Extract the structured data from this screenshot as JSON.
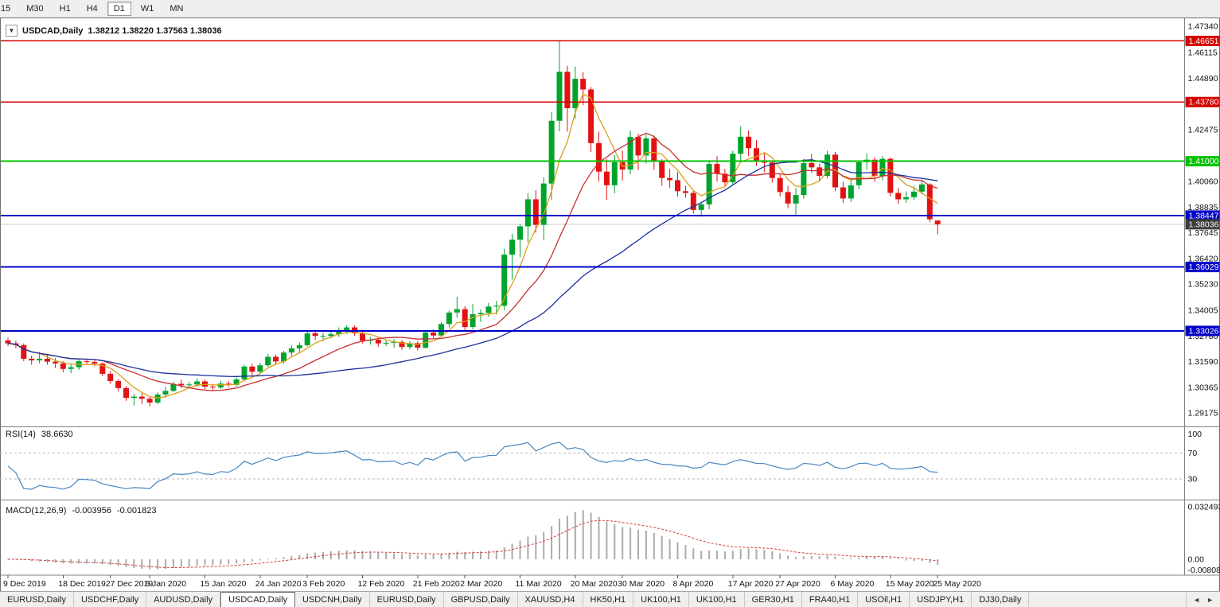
{
  "toolbar": {
    "timeframes": [
      "15",
      "M30",
      "H1",
      "H4",
      "D1",
      "W1",
      "MN"
    ],
    "selected": "D1"
  },
  "chart_data": {
    "type": "candlestick",
    "title": "USDCAD,Daily",
    "ohlc_text": "1.38212 1.38220 1.37563 1.38036",
    "ohlc": {
      "open": 1.38212,
      "high": 1.3822,
      "low": 1.37563,
      "close": 1.38036
    },
    "price_axis": {
      "range": {
        "min": 1.28614,
        "max": 1.47564
      },
      "ticks": [
        "1.47340",
        "1.46115",
        "1.44890",
        "1.42475",
        "1.40060",
        "1.38835",
        "1.37645",
        "1.36420",
        "1.35230",
        "1.34005",
        "1.32780",
        "1.31590",
        "1.30365",
        "1.29175"
      ]
    },
    "levels": [
      {
        "value": 1.46651,
        "label": "1.46651",
        "color": "#d40000",
        "width": 1.6
      },
      {
        "value": 1.4378,
        "label": "1.43780",
        "color": "#d40000",
        "width": 1.6
      },
      {
        "value": 1.41,
        "label": "1.41000",
        "color": "#00c400",
        "width": 2.2
      },
      {
        "value": 1.38447,
        "label": "1.38447",
        "color": "#0000c8",
        "width": 2
      },
      {
        "value": 1.36029,
        "label": "1.36029",
        "color": "#0000c8",
        "width": 2
      },
      {
        "value": 1.33026,
        "label": "1.33026",
        "color": "#0000c8",
        "width": 2
      }
    ],
    "current_price": {
      "value": 1.38036,
      "label": "1.38036",
      "line_color": "#c9c9c9",
      "label_bg": "#3c3c3c"
    },
    "candle_colors": {
      "up": "#00a42c",
      "down": "#e31212"
    },
    "moving_averages": [
      {
        "period": 5,
        "color": "#dba018"
      },
      {
        "period": 13,
        "color": "#c62f2f"
      },
      {
        "period": 34,
        "color": "#1b2f9e"
      }
    ],
    "candles": [
      [
        1.3258,
        1.327,
        1.3232,
        1.3244
      ],
      [
        1.3244,
        1.3256,
        1.3222,
        1.3236
      ],
      [
        1.3236,
        1.3244,
        1.316,
        1.3172
      ],
      [
        1.3172,
        1.3186,
        1.3144,
        1.3164
      ],
      [
        1.3164,
        1.3204,
        1.315,
        1.3172
      ],
      [
        1.3172,
        1.3188,
        1.3144,
        1.3158
      ],
      [
        1.3158,
        1.3175,
        1.3128,
        1.315
      ],
      [
        1.315,
        1.316,
        1.3108,
        1.3124
      ],
      [
        1.3124,
        1.315,
        1.3104,
        1.3132
      ],
      [
        1.3132,
        1.317,
        1.312,
        1.316
      ],
      [
        1.316,
        1.3172,
        1.3144,
        1.3157
      ],
      [
        1.3157,
        1.3164,
        1.3138,
        1.3149
      ],
      [
        1.3149,
        1.3154,
        1.309,
        1.3101
      ],
      [
        1.3101,
        1.3114,
        1.3054,
        1.3067
      ],
      [
        1.3067,
        1.3075,
        1.3018,
        1.3034
      ],
      [
        1.3034,
        1.3044,
        1.2974,
        1.2988
      ],
      [
        1.2988,
        1.3006,
        1.2952,
        1.2994
      ],
      [
        1.2994,
        1.301,
        1.2958,
        1.2984
      ],
      [
        1.2984,
        1.2995,
        1.2948,
        1.2966
      ],
      [
        1.2966,
        1.3014,
        1.2958,
        1.3004
      ],
      [
        1.3004,
        1.304,
        1.2988,
        1.3021
      ],
      [
        1.3021,
        1.3064,
        1.3014,
        1.3054
      ],
      [
        1.3054,
        1.3074,
        1.3034,
        1.3047
      ],
      [
        1.3047,
        1.3064,
        1.3034,
        1.3051
      ],
      [
        1.3051,
        1.3079,
        1.3039,
        1.3065
      ],
      [
        1.3065,
        1.3074,
        1.3028,
        1.3041
      ],
      [
        1.3041,
        1.3054,
        1.3024,
        1.3037
      ],
      [
        1.3037,
        1.3069,
        1.3029,
        1.3055
      ],
      [
        1.3055,
        1.3067,
        1.3039,
        1.3049
      ],
      [
        1.3049,
        1.3084,
        1.3041,
        1.3075
      ],
      [
        1.3075,
        1.3144,
        1.3069,
        1.3135
      ],
      [
        1.3135,
        1.3149,
        1.3094,
        1.3111
      ],
      [
        1.3111,
        1.3154,
        1.3099,
        1.3141
      ],
      [
        1.3141,
        1.3194,
        1.3134,
        1.3181
      ],
      [
        1.3181,
        1.3191,
        1.3144,
        1.3159
      ],
      [
        1.3159,
        1.3209,
        1.3149,
        1.3201
      ],
      [
        1.3201,
        1.3234,
        1.3184,
        1.3221
      ],
      [
        1.3221,
        1.3249,
        1.3199,
        1.3235
      ],
      [
        1.3235,
        1.3299,
        1.3229,
        1.3291
      ],
      [
        1.3291,
        1.3304,
        1.3261,
        1.3279
      ],
      [
        1.3279,
        1.3294,
        1.3254,
        1.3279
      ],
      [
        1.3279,
        1.3299,
        1.3267,
        1.3287
      ],
      [
        1.3287,
        1.3319,
        1.3274,
        1.3304
      ],
      [
        1.3304,
        1.3329,
        1.3289,
        1.3319
      ],
      [
        1.3319,
        1.3329,
        1.3279,
        1.3291
      ],
      [
        1.3291,
        1.3299,
        1.3244,
        1.3257
      ],
      [
        1.3257,
        1.3274,
        1.3239,
        1.3261
      ],
      [
        1.3261,
        1.3269,
        1.3229,
        1.3244
      ],
      [
        1.3244,
        1.3257,
        1.3231,
        1.3247
      ],
      [
        1.3247,
        1.3264,
        1.3224,
        1.3251
      ],
      [
        1.3251,
        1.3259,
        1.3214,
        1.3227
      ],
      [
        1.3227,
        1.3254,
        1.3217,
        1.3245
      ],
      [
        1.3245,
        1.3254,
        1.3211,
        1.3224
      ],
      [
        1.3224,
        1.3304,
        1.3219,
        1.3295
      ],
      [
        1.3295,
        1.3309,
        1.3264,
        1.3281
      ],
      [
        1.3281,
        1.3344,
        1.3274,
        1.3335
      ],
      [
        1.3335,
        1.3399,
        1.3319,
        1.3389
      ],
      [
        1.3389,
        1.3464,
        1.3364,
        1.3405
      ],
      [
        1.3405,
        1.3419,
        1.3304,
        1.3321
      ],
      [
        1.3321,
        1.3429,
        1.3309,
        1.3381
      ],
      [
        1.3381,
        1.3404,
        1.3344,
        1.3387
      ],
      [
        1.3387,
        1.3434,
        1.3369,
        1.3417
      ],
      [
        1.3417,
        1.3444,
        1.3379,
        1.3421
      ],
      [
        1.3421,
        1.3689,
        1.3399,
        1.3661
      ],
      [
        1.3661,
        1.3759,
        1.3544,
        1.3731
      ],
      [
        1.3731,
        1.3804,
        1.3649,
        1.3794
      ],
      [
        1.3794,
        1.3949,
        1.3719,
        1.3921
      ],
      [
        1.3921,
        1.3964,
        1.3764,
        1.3801
      ],
      [
        1.3801,
        1.4024,
        1.3729,
        1.3995
      ],
      [
        1.3995,
        1.433,
        1.3919,
        1.429
      ],
      [
        1.429,
        1.4668,
        1.424,
        1.452
      ],
      [
        1.452,
        1.4548,
        1.4239,
        1.4349
      ],
      [
        1.4349,
        1.4544,
        1.4299,
        1.4487
      ],
      [
        1.4487,
        1.4519,
        1.4364,
        1.4437
      ],
      [
        1.4437,
        1.4449,
        1.4144,
        1.4185
      ],
      [
        1.4185,
        1.4239,
        1.4004,
        1.4051
      ],
      [
        1.4051,
        1.4109,
        1.3919,
        1.3987
      ],
      [
        1.3987,
        1.4129,
        1.3949,
        1.4095
      ],
      [
        1.4095,
        1.4149,
        1.4009,
        1.4061
      ],
      [
        1.4061,
        1.4244,
        1.4039,
        1.4214
      ],
      [
        1.4214,
        1.4229,
        1.4059,
        1.4127
      ],
      [
        1.4127,
        1.4227,
        1.4089,
        1.4207
      ],
      [
        1.4207,
        1.4214,
        1.4059,
        1.4097
      ],
      [
        1.4097,
        1.4109,
        1.3984,
        1.4021
      ],
      [
        1.4021,
        1.4064,
        1.3974,
        1.4011
      ],
      [
        1.4011,
        1.4049,
        1.3934,
        1.3959
      ],
      [
        1.3959,
        1.3984,
        1.3929,
        1.3951
      ],
      [
        1.3951,
        1.3964,
        1.3854,
        1.3871
      ],
      [
        1.3871,
        1.3909,
        1.3839,
        1.3897
      ],
      [
        1.3897,
        1.4104,
        1.3874,
        1.4087
      ],
      [
        1.4087,
        1.4124,
        1.4004,
        1.4041
      ],
      [
        1.4041,
        1.4064,
        1.3984,
        1.4001
      ],
      [
        1.4001,
        1.4149,
        1.3989,
        1.4135
      ],
      [
        1.4135,
        1.4264,
        1.4104,
        1.4215
      ],
      [
        1.4215,
        1.4244,
        1.4124,
        1.4161
      ],
      [
        1.4161,
        1.4199,
        1.4079,
        1.4097
      ],
      [
        1.4097,
        1.4139,
        1.4049,
        1.4094
      ],
      [
        1.4094,
        1.4104,
        1.3999,
        1.4021
      ],
      [
        1.4021,
        1.4039,
        1.3934,
        1.3955
      ],
      [
        1.3955,
        1.3984,
        1.3879,
        1.3901
      ],
      [
        1.3901,
        1.3974,
        1.3849,
        1.3941
      ],
      [
        1.3941,
        1.4111,
        1.3924,
        1.4091
      ],
      [
        1.4091,
        1.4134,
        1.4044,
        1.4071
      ],
      [
        1.4071,
        1.4089,
        1.4004,
        1.4031
      ],
      [
        1.4031,
        1.4149,
        1.4019,
        1.4131
      ],
      [
        1.4131,
        1.4144,
        1.3959,
        1.3977
      ],
      [
        1.3977,
        1.4004,
        1.3904,
        1.3925
      ],
      [
        1.3925,
        1.4009,
        1.3909,
        1.3987
      ],
      [
        1.3987,
        1.4104,
        1.3969,
        1.4095
      ],
      [
        1.4095,
        1.4137,
        1.4059,
        1.4107
      ],
      [
        1.4107,
        1.4119,
        1.4004,
        1.4031
      ],
      [
        1.4031,
        1.4124,
        1.4009,
        1.4111
      ],
      [
        1.4111,
        1.4117,
        1.3934,
        1.3951
      ],
      [
        1.3951,
        1.3974,
        1.3899,
        1.3921
      ],
      [
        1.3921,
        1.3959,
        1.3904,
        1.3931
      ],
      [
        1.3931,
        1.3984,
        1.3919,
        1.3957
      ],
      [
        1.3957,
        1.4014,
        1.3944,
        1.3991
      ],
      [
        1.3991,
        1.3997,
        1.3814,
        1.3827
      ],
      [
        1.38212,
        1.3822,
        1.37563,
        1.38036
      ]
    ],
    "date_ticks": [
      {
        "label": "9 Dec 2019",
        "index": 0
      },
      {
        "label": "18 Dec 2019",
        "index": 7
      },
      {
        "label": "27 Dec 2019",
        "index": 13
      },
      {
        "label": "6 Jan 2020",
        "index": 18
      },
      {
        "label": "15 Jan 2020",
        "index": 25
      },
      {
        "label": "24 Jan 2020",
        "index": 32
      },
      {
        "label": "3 Feb 2020",
        "index": 38
      },
      {
        "label": "12 Feb 2020",
        "index": 45
      },
      {
        "label": "21 Feb 2020",
        "index": 52
      },
      {
        "label": "2 Mar 2020",
        "index": 58
      },
      {
        "label": "11 Mar 2020",
        "index": 65
      },
      {
        "label": "20 Mar 2020",
        "index": 72
      },
      {
        "label": "30 Mar 2020",
        "index": 78
      },
      {
        "label": "8 Apr 2020",
        "index": 85
      },
      {
        "label": "17 Apr 2020",
        "index": 92
      },
      {
        "label": "27 Apr 2020",
        "index": 98
      },
      {
        "label": "6 May 2020",
        "index": 105
      },
      {
        "label": "15 May 2020",
        "index": 112
      },
      {
        "label": "25 May 2020",
        "index": 118
      }
    ],
    "indicators": {
      "rsi": {
        "label": "RSI(14)",
        "period": 14,
        "value_display": "38.6630",
        "color": "#4a86c0",
        "levels": [
          70,
          30
        ],
        "axis_labels": [
          {
            "label": "100",
            "value": 100
          },
          {
            "label": "70",
            "value": 70
          },
          {
            "label": "30",
            "value": 30
          }
        ],
        "range": [
          0,
          110
        ]
      },
      "macd": {
        "label": "MACD(12,26,9)",
        "fast": 12,
        "slow": 26,
        "signal": 9,
        "value_display": "-0.003956",
        "signal_display": "-0.001823",
        "histogram_color": "#ababab",
        "signal_color": "#d04040",
        "axis_labels": [
          {
            "label": "0.032493",
            "value": 0.032493
          },
          {
            "label": "0.00",
            "value": 0
          },
          {
            "label": "-0.008086",
            "value": -0.008086
          }
        ]
      }
    }
  },
  "bottom_tabs": {
    "tabs": [
      "EURUSD,Daily",
      "USDCHF,Daily",
      "AUDUSD,Daily",
      "USDCAD,Daily",
      "USDCNH,Daily",
      "EURUSD,Daily",
      "GBPUSD,Daily",
      "XAUUSD,H4",
      "HK50,H1",
      "UK100,H1",
      "UK100,H1",
      "GER30,H1",
      "FRA40,H1",
      "USOil,H1",
      "USDJPY,H1",
      "DJ30,Daily"
    ],
    "active_index": 3,
    "scroll_left_icon": "◄",
    "scroll_right_icon": "►"
  }
}
